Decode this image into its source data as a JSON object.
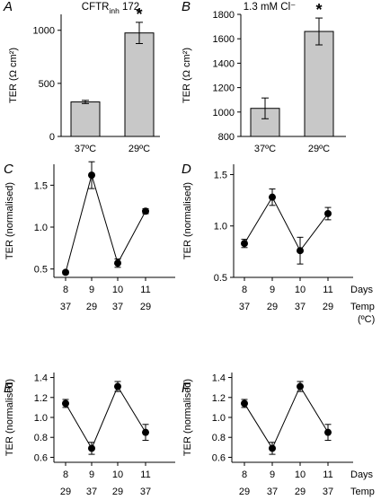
{
  "chart_data": [
    {
      "panel": "A",
      "type": "bar",
      "title": "CFTR",
      "title_sub": "inh",
      "title_suffix": " 172",
      "ylabel": "TER (Ω cm²)",
      "categories": [
        "37ºC",
        "29ºC"
      ],
      "values": [
        325,
        975
      ],
      "errors": [
        15,
        100
      ],
      "significance": [
        "",
        "*"
      ],
      "ylim": [
        0,
        1150
      ],
      "yticks": [
        0,
        500,
        1000
      ]
    },
    {
      "panel": "B",
      "type": "bar",
      "title": "1.3 mM Cl⁻",
      "ylabel": "TER (Ω cm²)",
      "categories": [
        "37ºC",
        "29ºC"
      ],
      "values": [
        1030,
        1660
      ],
      "errors": [
        85,
        110
      ],
      "significance": [
        "",
        "*"
      ],
      "ylim": [
        800,
        1800
      ],
      "yticks": [
        800,
        1000,
        1200,
        1400,
        1600,
        1800
      ]
    },
    {
      "panel": "C",
      "type": "line",
      "ylabel": "TER (normalised)",
      "x": [
        "8",
        "9",
        "10",
        "11"
      ],
      "temps": [
        "37",
        "29",
        "37",
        "29"
      ],
      "values": [
        0.46,
        1.62,
        0.57,
        1.19
      ],
      "errors": [
        0.02,
        0.16,
        0.05,
        0.03
      ],
      "ylim": [
        0.4,
        1.75
      ],
      "yticks": [
        0.5,
        1.0,
        1.5
      ],
      "ytick_labels": [
        "0.5",
        "1.0",
        "1.5"
      ]
    },
    {
      "panel": "D",
      "type": "line",
      "ylabel": "TER (normalised)",
      "x": [
        "8",
        "9",
        "10",
        "11"
      ],
      "temps": [
        "37",
        "29",
        "37",
        "29"
      ],
      "values": [
        0.83,
        1.28,
        0.76,
        1.12
      ],
      "errors": [
        0.04,
        0.08,
        0.13,
        0.06
      ],
      "ylim": [
        0.5,
        1.6
      ],
      "yticks": [
        0.5,
        1.0,
        1.5
      ],
      "ytick_labels": [
        "0.5",
        "1.0",
        "1.5"
      ],
      "row_labels": [
        "Days",
        "Temp",
        "(ºC)"
      ]
    },
    {
      "panel": "E",
      "type": "line",
      "ylabel": "TER (normalised)",
      "x": [
        "8",
        "9",
        "10",
        "11"
      ],
      "temps": [
        "29",
        "37",
        "29",
        "37"
      ],
      "values": [
        1.14,
        0.69,
        1.31,
        0.85
      ],
      "errors": [
        0.04,
        0.06,
        0.05,
        0.08
      ],
      "ylim": [
        0.55,
        1.45
      ],
      "yticks": [
        0.6,
        0.8,
        1.0,
        1.2,
        1.4
      ],
      "ytick_labels": [
        "0.6",
        "0.8",
        "1.0",
        "1.2",
        "1.4"
      ]
    },
    {
      "panel": "F",
      "type": "line",
      "ylabel": "TER (normalised)",
      "x": [
        "8",
        "9",
        "10",
        "11"
      ],
      "temps": [
        "29",
        "37",
        "29",
        "37"
      ],
      "values": [
        1.14,
        0.69,
        1.31,
        0.85
      ],
      "errors": [
        0.04,
        0.06,
        0.05,
        0.08
      ],
      "ylim": [
        0.55,
        1.45
      ],
      "yticks": [
        0.6,
        0.8,
        1.0,
        1.2,
        1.4
      ],
      "ytick_labels": [
        "0.6",
        "0.8",
        "1.0",
        "1.2",
        "1.4"
      ],
      "row_labels": [
        "Days",
        "Temp",
        "(ºC)"
      ]
    }
  ],
  "colors": {
    "bar_fill": "#c8c8c8",
    "ink": "#000000",
    "background": "#ffffff"
  }
}
